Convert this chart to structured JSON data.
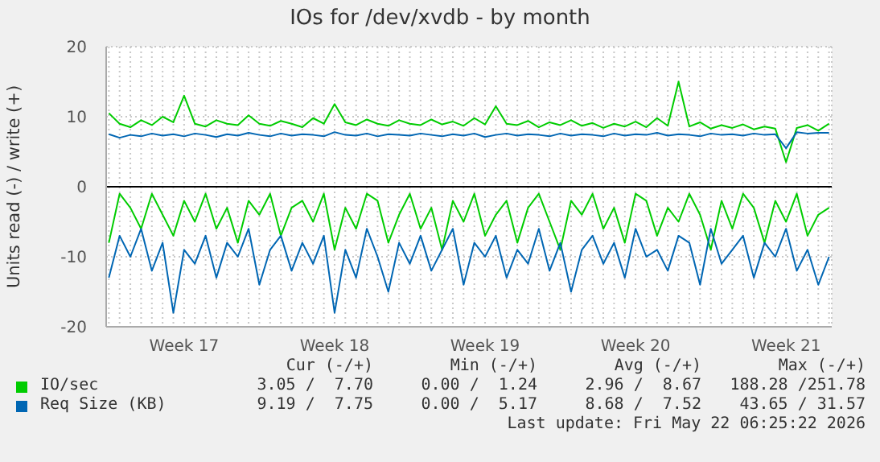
{
  "chart_data": {
    "type": "line",
    "title": "IOs for /dev/xvdb - by month",
    "ylabel": "Units read (-) / write (+)",
    "categories": [
      null,
      null,
      null,
      null,
      null,
      null,
      null,
      "Week 17",
      null,
      null,
      null,
      null,
      null,
      null,
      null,
      null,
      null,
      null,
      null,
      null,
      null,
      "Week 18",
      null,
      null,
      null,
      null,
      null,
      null,
      null,
      null,
      null,
      null,
      null,
      null,
      null,
      "Week 19",
      null,
      null,
      null,
      null,
      null,
      null,
      null,
      null,
      null,
      null,
      null,
      null,
      null,
      "Week 20",
      null,
      null,
      null,
      null,
      null,
      null,
      null,
      null,
      null,
      null,
      null,
      null,
      null,
      "Week 21",
      null,
      null,
      null,
      null
    ],
    "ylim": [
      -20,
      20
    ],
    "yticks": [
      -20,
      -10,
      0,
      10,
      20
    ],
    "grid": true,
    "legend": "bottom",
    "marker": "none",
    "line_style": "solid",
    "ref_lines": [
      {
        "axis": "y",
        "value": 0,
        "color": "#000000"
      }
    ],
    "series": [
      {
        "name": "IO/sec",
        "color": "#00cc00",
        "values": [
          10.5,
          9,
          8.5,
          9.5,
          8.8,
          10,
          9.2,
          13,
          9,
          8.6,
          9.5,
          9,
          8.8,
          10.2,
          9,
          8.7,
          9.4,
          9,
          8.5,
          9.8,
          9,
          11.8,
          9.2,
          8.8,
          9.6,
          9,
          8.7,
          9.5,
          9,
          8.8,
          9.6,
          8.9,
          9.3,
          8.7,
          9.8,
          8.9,
          11.5,
          9,
          8.8,
          9.4,
          8.5,
          9.2,
          8.8,
          9.5,
          8.7,
          9.1,
          8.4,
          9,
          8.6,
          9.3,
          8.5,
          9.8,
          8.7,
          15,
          8.6,
          9.2,
          8.3,
          8.8,
          8.4,
          8.9,
          8.2,
          8.6,
          8.3,
          3.5,
          8.4,
          8.8,
          8,
          9
        ]
      },
      {
        "color": "#00cc00",
        "values": [
          -8,
          -1,
          -3,
          -6,
          -1,
          -4,
          -7,
          -2,
          -5,
          -1,
          -6,
          -3,
          -8,
          -2,
          -4,
          -1,
          -7,
          -3,
          -2,
          -5,
          -1,
          -9,
          -3,
          -6,
          -1,
          -2,
          -8,
          -4,
          -1,
          -6,
          -3,
          -9,
          -2,
          -5,
          -1,
          -7,
          -4,
          -2,
          -8,
          -3,
          -1,
          -5,
          -9,
          -2,
          -4,
          -1,
          -6,
          -3,
          -8,
          -1,
          -2,
          -7,
          -3,
          -5,
          -1,
          -4,
          -9,
          -2,
          -6,
          -1,
          -3,
          -8,
          -2,
          -5,
          -1,
          -7,
          -4,
          -3
        ]
      },
      {
        "name": "Req Size (KB)",
        "color": "#0066b3",
        "values": [
          7.5,
          7,
          7.4,
          7.2,
          7.6,
          7.3,
          7.5,
          7.2,
          7.6,
          7.4,
          7.1,
          7.5,
          7.3,
          7.7,
          7.4,
          7.2,
          7.6,
          7.3,
          7.5,
          7.4,
          7.2,
          7.8,
          7.4,
          7.3,
          7.6,
          7.2,
          7.5,
          7.4,
          7.3,
          7.6,
          7.4,
          7.2,
          7.5,
          7.3,
          7.6,
          7.1,
          7.4,
          7.6,
          7.3,
          7.5,
          7.4,
          7.2,
          7.6,
          7.3,
          7.5,
          7.4,
          7.2,
          7.6,
          7.3,
          7.5,
          7.4,
          7.7,
          7.3,
          7.5,
          7.4,
          7.2,
          7.6,
          7.4,
          7.5,
          7.3,
          7.6,
          7.4,
          7.5,
          5.5,
          7.8,
          7.6,
          7.7,
          7.7
        ]
      },
      {
        "color": "#0066b3",
        "values": [
          -13,
          -7,
          -10,
          -6,
          -12,
          -8,
          -18,
          -9,
          -11,
          -7,
          -13,
          -8,
          -10,
          -6,
          -14,
          -9,
          -7,
          -12,
          -8,
          -11,
          -7,
          -18,
          -9,
          -13,
          -6,
          -10,
          -15,
          -8,
          -11,
          -7,
          -12,
          -9,
          -6,
          -14,
          -8,
          -10,
          -7,
          -13,
          -9,
          -11,
          -6,
          -12,
          -8,
          -15,
          -9,
          -7,
          -11,
          -8,
          -13,
          -6,
          -10,
          -9,
          -12,
          -7,
          -8,
          -14,
          -6,
          -11,
          -9,
          -7,
          -13,
          -8,
          -10,
          -6,
          -12,
          -9,
          -14,
          -10
        ]
      }
    ],
    "annotations": [
      "Cur (-/+)",
      "Min (-/+)",
      "Avg (-/+)",
      "Max (-/+)",
      "3.05 /  7.70",
      "0.00 /  1.24",
      "2.96 /  8.67",
      "188.28 /251.78",
      "9.19 /  7.75",
      "0.00 /  5.17",
      "8.68 /  7.52",
      "43.65 / 31.57",
      "Last update: Fri May 22 06:25:22 2026"
    ]
  }
}
